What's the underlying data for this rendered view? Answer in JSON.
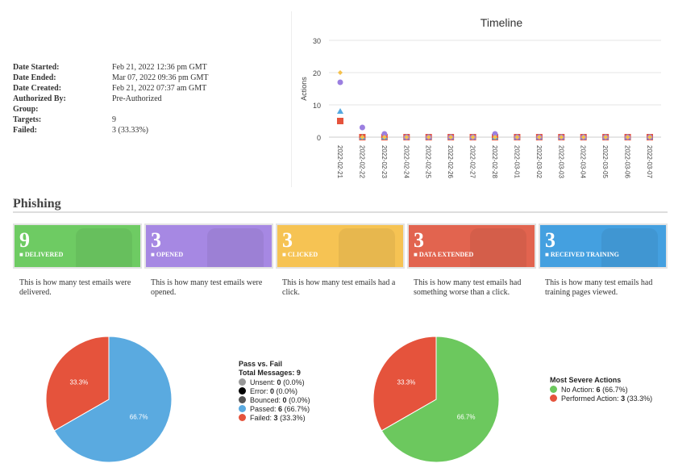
{
  "details": [
    {
      "label": "Date Started:",
      "value": "Feb 21, 2022 12:36 pm GMT"
    },
    {
      "label": "Date Ended:",
      "value": "Mar 07, 2022 09:36 pm GMT"
    },
    {
      "label": "Date Created:",
      "value": "Feb 21, 2022 07:37 am GMT"
    },
    {
      "label": "Authorized By:",
      "value": "Pre-Authorized"
    },
    {
      "label": "Group:",
      "value": ""
    },
    {
      "label": "Targets:",
      "value": "9"
    },
    {
      "label": "Failed:",
      "value": "3 (33.33%)"
    }
  ],
  "chart_data": [
    {
      "type": "scatter",
      "title": "Timeline",
      "ylabel": "Actions",
      "ylim": [
        0,
        30
      ],
      "yticks": [
        0,
        10,
        20,
        30
      ],
      "grid": true,
      "x": [
        "2022-02-21",
        "2022-02-22",
        "2022-02-23",
        "2022-02-24",
        "2022-02-25",
        "2022-02-26",
        "2022-02-27",
        "2022-02-28",
        "2022-03-01",
        "2022-03-02",
        "2022-03-03",
        "2022-03-04",
        "2022-03-05",
        "2022-03-06",
        "2022-03-07"
      ],
      "series": [
        {
          "color": "#f4c04c",
          "marker": "diamond",
          "values": [
            20,
            0,
            0,
            0,
            0,
            0,
            0,
            0,
            0,
            0,
            0,
            0,
            0,
            0,
            0
          ]
        },
        {
          "color": "#9b7fe0",
          "marker": "circle",
          "values": [
            17,
            3,
            1,
            0,
            0,
            0,
            0,
            1,
            0,
            0,
            0,
            0,
            0,
            0,
            0
          ]
        },
        {
          "color": "#54a8e0",
          "marker": "triangle",
          "values": [
            8,
            0,
            0,
            0,
            0,
            0,
            0,
            0,
            0,
            0,
            0,
            0,
            0,
            0,
            0
          ]
        },
        {
          "color": "#e5533c",
          "marker": "square",
          "values": [
            5,
            0,
            0,
            0,
            0,
            0,
            0,
            0,
            0,
            0,
            0,
            0,
            0,
            0,
            0
          ]
        }
      ]
    },
    {
      "type": "pie",
      "slices": [
        {
          "label": "66.7%",
          "value": 66.7,
          "color": "#5aaae0"
        },
        {
          "label": "33.3%",
          "value": 33.3,
          "color": "#e5533c"
        }
      ]
    },
    {
      "type": "pie",
      "slices": [
        {
          "label": "66.7%",
          "value": 66.7,
          "color": "#6cc85e"
        },
        {
          "label": "33.3%",
          "value": 33.3,
          "color": "#e5533c"
        }
      ]
    }
  ],
  "section_title": "Phishing",
  "cards": [
    {
      "count": "9",
      "label": "DELIVERED",
      "icon": "envelope-icon",
      "color": "#6ecb63",
      "desc": "This is how many test emails were delivered."
    },
    {
      "count": "3",
      "label": "OPENED",
      "icon": "envelope-open-icon",
      "color": "#a688e3",
      "desc": "This is how many test emails were opened."
    },
    {
      "count": "3",
      "label": "CLICKED",
      "icon": "pointer-icon",
      "color": "#f6c353",
      "desc": "This is how many test emails had a click."
    },
    {
      "count": "3",
      "label": "DATA EXTENDED",
      "icon": "unlock-icon",
      "color": "#e2644f",
      "desc": "This is how many test emails had something worse than a click."
    },
    {
      "count": "3",
      "label": "RECEIVED TRAINING",
      "icon": "graduation-cap-icon",
      "color": "#44a0e0",
      "desc": "This is how many test emails had training pages viewed."
    }
  ],
  "pass_fail": {
    "title": "Pass vs. Fail",
    "total_label": "Total Messages: 9",
    "items": [
      {
        "name": "Unsent:",
        "count": "0",
        "pct": "(0.0%)",
        "color": "#999999"
      },
      {
        "name": "Error:",
        "count": "0",
        "pct": "(0.0%)",
        "color": "#000000"
      },
      {
        "name": "Bounced:",
        "count": "0",
        "pct": "(0.0%)",
        "color": "#555555"
      },
      {
        "name": "Passed:",
        "count": "6",
        "pct": "(66.7%)",
        "color": "#5aaae0"
      },
      {
        "name": "Failed:",
        "count": "3",
        "pct": "(33.3%)",
        "color": "#e5533c"
      }
    ]
  },
  "severe": {
    "title": "Most Severe Actions",
    "items": [
      {
        "name": "No Action:",
        "count": "6",
        "pct": "(66.7%)",
        "color": "#6cc85e"
      },
      {
        "name": "Performed Action:",
        "count": "3",
        "pct": "(33.3%)",
        "color": "#e5533c"
      }
    ]
  }
}
